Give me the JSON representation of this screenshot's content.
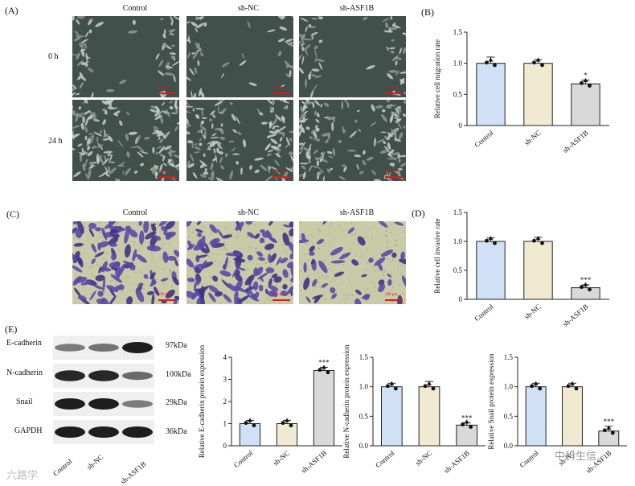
{
  "panels": {
    "A": "(A)",
    "B": "(B)",
    "C": "(C)",
    "D": "(D)",
    "E": "(E)"
  },
  "panel_a": {
    "columns": [
      "Control",
      "sh-NC",
      "sh-ASF1B"
    ],
    "rows": [
      "0 h",
      "24 h"
    ],
    "scale_label": "100 μm"
  },
  "panel_c": {
    "columns": [
      "Control",
      "sh-NC",
      "sh-ASF1B"
    ],
    "scale_label": "100 μm"
  },
  "panel_e": {
    "proteins": [
      "E-cadherin",
      "N-cadherin",
      "Snail",
      "GAPDH"
    ],
    "kda": [
      "97kDa",
      "100kDa",
      "29kDa",
      "36kDa"
    ],
    "lanes": [
      "Control",
      "sh-NC",
      "sh-ASF1B"
    ]
  },
  "colors": {
    "control": "#cfe0f7",
    "sh_nc": "#f0ead2",
    "sh_asf1b": "#d9d9d9"
  },
  "chart_data": [
    {
      "type": "bar",
      "panel": "B",
      "categories": [
        "Control",
        "sh-NC",
        "sh-ASF1B"
      ],
      "values": [
        1.0,
        1.0,
        0.67
      ],
      "errors": [
        0.1,
        0.06,
        0.06
      ],
      "significance": [
        "",
        "",
        "*"
      ],
      "ylabel": "Relative cell migration rate",
      "ylim": [
        0,
        1.5
      ],
      "yticks": [
        "0",
        "0.5",
        "1.0",
        "1.5"
      ],
      "ytick_values": [
        0,
        0.5,
        1.0,
        1.5
      ]
    },
    {
      "type": "bar",
      "panel": "D",
      "categories": [
        "Control",
        "sh-NC",
        "sh-ASF1B"
      ],
      "values": [
        1.0,
        1.0,
        0.2
      ],
      "errors": [
        0.06,
        0.07,
        0.05
      ],
      "significance": [
        "",
        "",
        "***"
      ],
      "ylabel": "Relative cell invasive rate",
      "ylim": [
        0,
        1.5
      ],
      "yticks": [
        "0",
        "0.5",
        "1.0",
        "1.5"
      ],
      "ytick_values": [
        0,
        0.5,
        1.0,
        1.5
      ]
    },
    {
      "type": "bar",
      "panel": "E1",
      "categories": [
        "Control",
        "sh-NC",
        "sh-ASF1B"
      ],
      "values": [
        1.0,
        1.0,
        3.4
      ],
      "errors": [
        0.15,
        0.15,
        0.15
      ],
      "significance": [
        "",
        "",
        "***"
      ],
      "ylabel": "Relative E-cadherin protein expression",
      "ylim": [
        0,
        4
      ],
      "yticks": [
        "0",
        "1",
        "2",
        "3",
        "4"
      ],
      "ytick_values": [
        0,
        1,
        2,
        3,
        4
      ]
    },
    {
      "type": "bar",
      "panel": "E2",
      "categories": [
        "Control",
        "sh-NC",
        "sh-ASF1B"
      ],
      "values": [
        1.0,
        1.0,
        0.35
      ],
      "errors": [
        0.06,
        0.09,
        0.04
      ],
      "significance": [
        "",
        "",
        "***"
      ],
      "ylabel": "Relative N-cadherin protein expression",
      "ylim": [
        0,
        1.5
      ],
      "yticks": [
        "0.0",
        "0.5",
        "1.0",
        "1.5"
      ],
      "ytick_values": [
        0,
        0.5,
        1.0,
        1.5
      ]
    },
    {
      "type": "bar",
      "panel": "E3",
      "categories": [
        "Control",
        "sh-NC",
        "sh-ASF1B"
      ],
      "values": [
        1.0,
        1.0,
        0.25
      ],
      "errors": [
        0.06,
        0.06,
        0.08
      ],
      "significance": [
        "",
        "",
        "***"
      ],
      "ylabel": "Relative Snail protein expression",
      "ylim": [
        0,
        1.5
      ],
      "yticks": [
        "0.0",
        "0.5",
        "1.0",
        "1.5"
      ],
      "ytick_values": [
        0,
        0.5,
        1.0,
        1.5
      ]
    }
  ],
  "watermarks": {
    "left": "六路学",
    "right": "中科生信"
  }
}
